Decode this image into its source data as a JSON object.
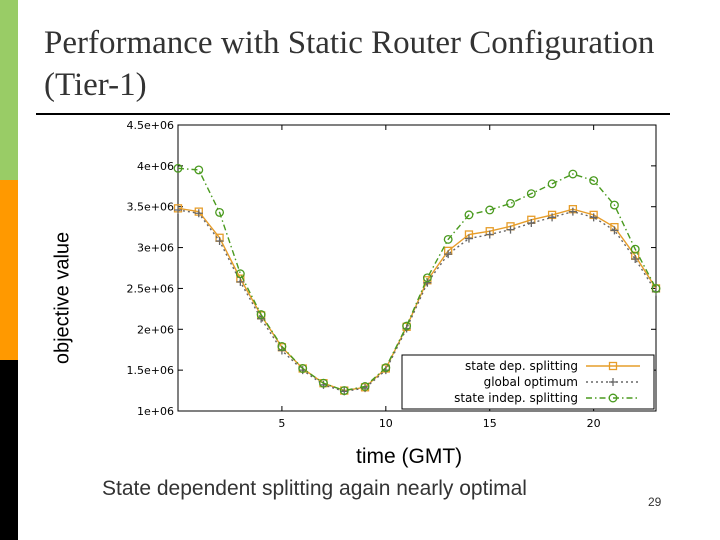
{
  "slide": {
    "title": "Performance with Static Router Configuration (Tier-1)",
    "caption": "State dependent splitting again nearly optimal",
    "page_number": "29"
  },
  "colors": {
    "bar_top": "#99cc66",
    "bar_middle": "#ff9900",
    "bar_bottom": "#000000",
    "title_text": "#333333"
  },
  "chart_data": {
    "type": "line",
    "xlabel": "time (GMT)",
    "ylabel": "objective value",
    "xlim": [
      0,
      23
    ],
    "ylim": [
      1000000,
      4500000
    ],
    "x_ticks": [
      5,
      10,
      15,
      20
    ],
    "x_tick_labels": [
      "5",
      "10",
      "15",
      "20"
    ],
    "y_ticks": [
      1000000,
      1500000,
      2000000,
      2500000,
      3000000,
      3500000,
      4000000,
      4500000
    ],
    "y_tick_labels": [
      "1e+06",
      "1.5e+06",
      "2e+06",
      "2.5e+06",
      "3e+06",
      "3.5e+06",
      "4e+06",
      "4.5e+06"
    ],
    "grid": false,
    "legend_position": "bottom-right",
    "x": [
      0,
      1,
      2,
      3,
      4,
      5,
      6,
      7,
      8,
      9,
      10,
      11,
      12,
      13,
      14,
      15,
      16,
      17,
      18,
      19,
      20,
      21,
      22,
      23
    ],
    "series": [
      {
        "name": "state dep. splitting",
        "color": "#e69d2a",
        "dash": "solid",
        "marker": "square",
        "values": [
          3480000,
          3440000,
          3120000,
          2620000,
          2170000,
          1780000,
          1520000,
          1340000,
          1250000,
          1290000,
          1520000,
          2030000,
          2600000,
          2960000,
          3160000,
          3200000,
          3260000,
          3340000,
          3400000,
          3470000,
          3400000,
          3250000,
          2900000,
          2500000
        ]
      },
      {
        "name": "global optimum",
        "color": "#666666",
        "dash": "dotted",
        "marker": "plus",
        "values": [
          3460000,
          3420000,
          3080000,
          2580000,
          2130000,
          1740000,
          1500000,
          1320000,
          1240000,
          1280000,
          1500000,
          2010000,
          2570000,
          2920000,
          3110000,
          3160000,
          3220000,
          3300000,
          3370000,
          3440000,
          3370000,
          3210000,
          2860000,
          2460000
        ]
      },
      {
        "name": "state indep. splitting",
        "color": "#4a9a1f",
        "dash": "dash-dot",
        "marker": "circle",
        "values": [
          3970000,
          3950000,
          3430000,
          2680000,
          2180000,
          1790000,
          1520000,
          1340000,
          1250000,
          1300000,
          1530000,
          2040000,
          2630000,
          3100000,
          3400000,
          3460000,
          3540000,
          3660000,
          3780000,
          3900000,
          3820000,
          3520000,
          2980000,
          2500000
        ]
      }
    ]
  }
}
